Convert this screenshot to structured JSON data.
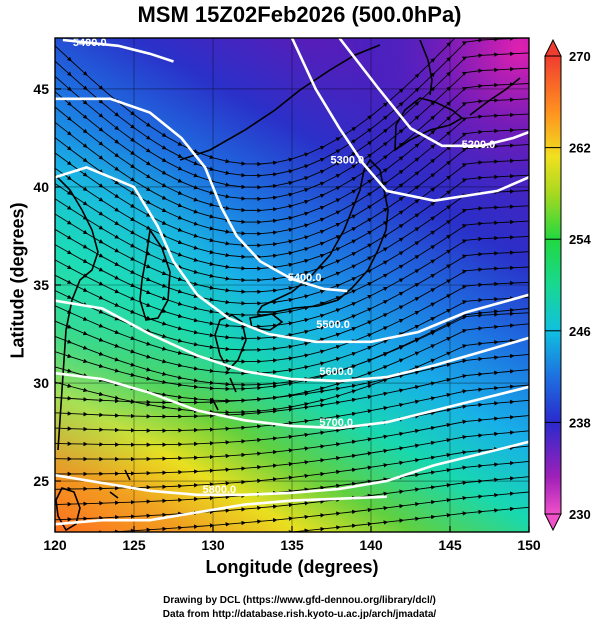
{
  "title": "MSM 15Z02Feb2026 (500.0hPa)",
  "xlabel": "Longitude (degrees)",
  "ylabel": "Latitude  (degrees)",
  "footer": {
    "line1": "Drawing by DCL (https://www.gfd-dennou.org/library/dcl/)",
    "line2": "Data from http://database.rish.kyoto-u.ac.jp/arch/jmadata/"
  },
  "chart_data": {
    "type": "heatmap",
    "description_of_fields": "shaded temperature (K) with white geopotential height contours (m) and black streamlines",
    "x_range": [
      120,
      150
    ],
    "y_range": [
      22.4,
      47.6
    ],
    "x_ticks": [
      "120",
      "125",
      "130",
      "135",
      "140",
      "145",
      "150"
    ],
    "y_ticks": [
      "25",
      "30",
      "35",
      "40",
      "45"
    ],
    "colorbar": {
      "range": [
        230,
        270
      ],
      "ticks": [
        "230",
        "238",
        "246",
        "254",
        "262",
        "270"
      ],
      "colors": [
        "#e020a0",
        "#7a1cb0",
        "#2a2acc",
        "#1e70e0",
        "#10c0e0",
        "#22d870",
        "#7ed020",
        "#e8e020",
        "#ff9020",
        "#f04030"
      ]
    },
    "height_contours": [
      {
        "label": "5400.0",
        "points": [
          [
            120.5,
            47.5
          ],
          [
            124,
            47.2
          ],
          [
            126,
            46.8
          ],
          [
            127.5,
            46.4
          ]
        ]
      },
      {
        "label": "5300.0",
        "points": [
          [
            120,
            44.5
          ],
          [
            123.5,
            44.5
          ],
          [
            126,
            43.8
          ],
          [
            128,
            42.5
          ],
          [
            129.5,
            41
          ],
          [
            130.5,
            39
          ],
          [
            131.5,
            37.5
          ],
          [
            133,
            36.2
          ],
          [
            135,
            35.3
          ],
          [
            137,
            34.8
          ],
          [
            138.5,
            34.7
          ]
        ]
      },
      {
        "label": "5400.0",
        "points": [
          [
            120,
            40.5
          ],
          [
            122,
            41
          ],
          [
            125,
            40
          ],
          [
            126.5,
            38
          ],
          [
            127.5,
            36.2
          ],
          [
            129,
            34.5
          ],
          [
            131,
            33.3
          ],
          [
            133.5,
            32.5
          ],
          [
            136.5,
            32.1
          ],
          [
            140,
            32.1
          ],
          [
            143,
            32.6
          ],
          [
            146,
            33.6
          ],
          [
            150,
            34.5
          ]
        ]
      },
      {
        "label": "5200.0",
        "points": [
          [
            135,
            47.6
          ],
          [
            136.5,
            45
          ],
          [
            138,
            43
          ],
          [
            139.5,
            41.2
          ],
          [
            141,
            39.8
          ],
          [
            144,
            39.3
          ],
          [
            148,
            39.8
          ],
          [
            150,
            40.5
          ]
        ]
      },
      {
        "label": "5200.0",
        "points": [
          [
            138,
            47.6
          ],
          [
            140.5,
            45
          ],
          [
            142.5,
            43
          ],
          [
            144.5,
            42.1
          ],
          [
            147,
            42.1
          ],
          [
            149,
            42.5
          ],
          [
            150,
            42.8
          ]
        ]
      },
      {
        "label": "5500.0",
        "points": [
          [
            120,
            34.2
          ],
          [
            123,
            33.8
          ],
          [
            126,
            32.5
          ],
          [
            129,
            31.4
          ],
          [
            132,
            30.6
          ],
          [
            135,
            30.2
          ],
          [
            138,
            30.1
          ],
          [
            141,
            30.3
          ],
          [
            144,
            30.9
          ],
          [
            147,
            31.6
          ],
          [
            150,
            32.3
          ]
        ]
      },
      {
        "label": "5600.0",
        "points": [
          [
            120,
            30.5
          ],
          [
            123,
            30.2
          ],
          [
            126,
            29.5
          ],
          [
            129,
            28.6
          ],
          [
            132,
            28.1
          ],
          [
            135,
            27.8
          ],
          [
            138,
            27.7
          ],
          [
            141,
            28
          ],
          [
            144,
            28.6
          ],
          [
            147,
            29.2
          ],
          [
            150,
            29.8
          ]
        ]
      },
      {
        "label": "5700.0",
        "points": [
          [
            120,
            25.3
          ],
          [
            123,
            24.9
          ],
          [
            126,
            24.5
          ],
          [
            129,
            24.3
          ],
          [
            132,
            24.3
          ],
          [
            135,
            24.4
          ],
          [
            138,
            24.6
          ],
          [
            141,
            25
          ],
          [
            144,
            25.8
          ],
          [
            147,
            26.4
          ],
          [
            150,
            27
          ]
        ]
      },
      {
        "label": "5800.0",
        "points": [
          [
            120,
            22.8
          ],
          [
            123,
            23
          ],
          [
            126,
            23
          ],
          [
            129,
            23.4
          ],
          [
            132,
            23.8
          ],
          [
            135,
            24
          ],
          [
            138,
            24.1
          ],
          [
            141,
            24.2
          ]
        ]
      }
    ],
    "contour_labels_shown": [
      {
        "text": "5400.0",
        "lon": 122.2,
        "lat": 47.2
      },
      {
        "text": "5300.0",
        "lon": 138.5,
        "lat": 41.2
      },
      {
        "text": "5200.0",
        "lon": 146.8,
        "lat": 42.0
      },
      {
        "text": "5400.0",
        "lon": 135.8,
        "lat": 35.2
      },
      {
        "text": "5500.0",
        "lon": 137.6,
        "lat": 32.8
      },
      {
        "text": "5600.0",
        "lon": 137.8,
        "lat": 30.4
      },
      {
        "text": "5700.0",
        "lon": 137.8,
        "lat": 27.8
      },
      {
        "text": "5800.0",
        "lon": 130.4,
        "lat": 24.4
      }
    ]
  }
}
